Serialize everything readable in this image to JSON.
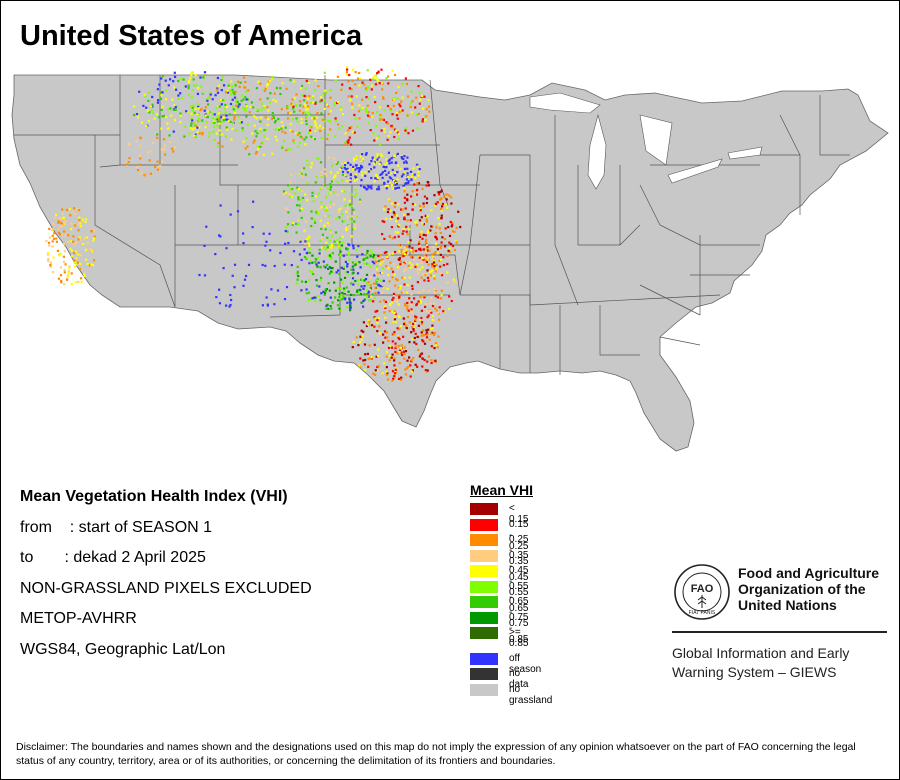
{
  "title": "United States of America",
  "info": {
    "index_name": "Mean Vegetation Health Index (VHI)",
    "from_line": "from    : start of SEASON 1",
    "to_line": "to       : dekad 2 April 2025",
    "exclusion": "NON-GRASSLAND PIXELS EXCLUDED",
    "sensor": "METOP-AVHRR",
    "projection": "WGS84, Geographic Lat/Lon"
  },
  "legend": {
    "title": "Mean VHI",
    "classes": [
      {
        "label": "< 0.15",
        "color": "#a50000"
      },
      {
        "label": "0.15 - 0.25",
        "color": "#ff0000"
      },
      {
        "label": "0.25 - 0.35",
        "color": "#ff8c00"
      },
      {
        "label": "0.35 - 0.45",
        "color": "#ffcc80"
      },
      {
        "label": "0.45 - 0.55",
        "color": "#ffff00"
      },
      {
        "label": "0.55 - 0.65",
        "color": "#80ff00"
      },
      {
        "label": "0.65 - 0.75",
        "color": "#33cc00"
      },
      {
        "label": "0.75 - 0.85",
        "color": "#009900"
      },
      {
        "label": ">= 0.85",
        "color": "#2e6b00"
      }
    ],
    "special": [
      {
        "label": "off season",
        "color": "#3333ff"
      },
      {
        "label": "no data",
        "color": "#333333"
      },
      {
        "label": "no grassland",
        "color": "#c8c8c8"
      }
    ]
  },
  "fao": {
    "name": "Food and Agriculture Organization of the United Nations",
    "logo_letters": "FAO",
    "logo_motto": "FIAT PANIS",
    "giews": "Global Information and Early Warning System – GIEWS"
  },
  "disclaimer": "Disclaimer: The boundaries and names shown and the designations used on this map do not imply the expression of any opinion whatsoever on the part of FAO concerning the legal status of any country, territory, area or of its authorities, or concerning the delimitation of its frontiers and boundaries."
}
